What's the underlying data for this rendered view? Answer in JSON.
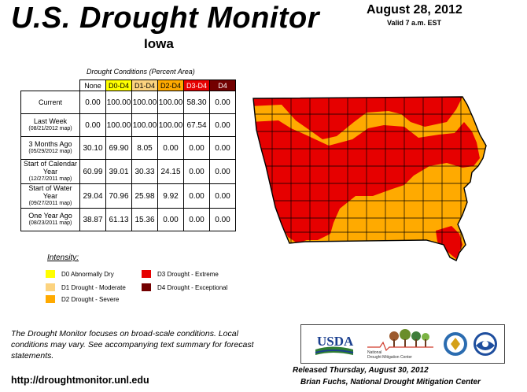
{
  "header": {
    "title": "U.S. Drought Monitor",
    "state": "Iowa",
    "date": "August 28, 2012",
    "valid": "Valid 7 a.m. EST"
  },
  "table": {
    "caption": "Drought Conditions (Percent Area)",
    "columns": [
      "None",
      "D0-D4",
      "D1-D4",
      "D2-D4",
      "D3-D4",
      "D4"
    ],
    "rows": [
      {
        "label": "Current",
        "sub": "",
        "values": [
          "0.00",
          "100.00",
          "100.00",
          "100.00",
          "58.30",
          "0.00"
        ]
      },
      {
        "label": "Last Week",
        "sub": "(08/21/2012 map)",
        "values": [
          "0.00",
          "100.00",
          "100.00",
          "100.00",
          "67.54",
          "0.00"
        ]
      },
      {
        "label": "3 Months Ago",
        "sub": "(05/29/2012 map)",
        "values": [
          "30.10",
          "69.90",
          "8.05",
          "0.00",
          "0.00",
          "0.00"
        ]
      },
      {
        "label": "Start of Calendar Year",
        "sub": "(12/27/2011 map)",
        "values": [
          "60.99",
          "39.01",
          "30.33",
          "24.15",
          "0.00",
          "0.00"
        ]
      },
      {
        "label": "Start of Water Year",
        "sub": "(09/27/2011 map)",
        "values": [
          "29.04",
          "70.96",
          "25.98",
          "9.92",
          "0.00",
          "0.00"
        ]
      },
      {
        "label": "One Year Ago",
        "sub": "(08/23/2011 map)",
        "values": [
          "38.87",
          "61.13",
          "15.36",
          "0.00",
          "0.00",
          "0.00"
        ]
      }
    ]
  },
  "legend": {
    "title": "Intensity:",
    "items": [
      {
        "label": "D0 Abnormally Dry",
        "color": "#ffff00"
      },
      {
        "label": "D1 Drought - Moderate",
        "color": "#fcd37f"
      },
      {
        "label": "D2 Drought - Severe",
        "color": "#ffaa00"
      },
      {
        "label": "D3 Drought - Extreme",
        "color": "#e60000"
      },
      {
        "label": "D4 Drought - Exceptional",
        "color": "#730000"
      }
    ]
  },
  "footnote": "The Drought Monitor focuses on broad-scale conditions. Local conditions may vary. See accompanying text summary for forecast statements.",
  "url": "http://droughtmonitor.unl.edu",
  "logos": {
    "usda": "USDA",
    "ndmc_line1": "National",
    "ndmc_line2": "Drought Mitigation Center"
  },
  "released": "Released Thursday, August 30, 2012",
  "author": "Brian Fuchs, National Drought Mitigation Center",
  "map": {
    "colors": {
      "severe": "#ffaa00",
      "extreme": "#e60000",
      "border": "#000000"
    }
  }
}
